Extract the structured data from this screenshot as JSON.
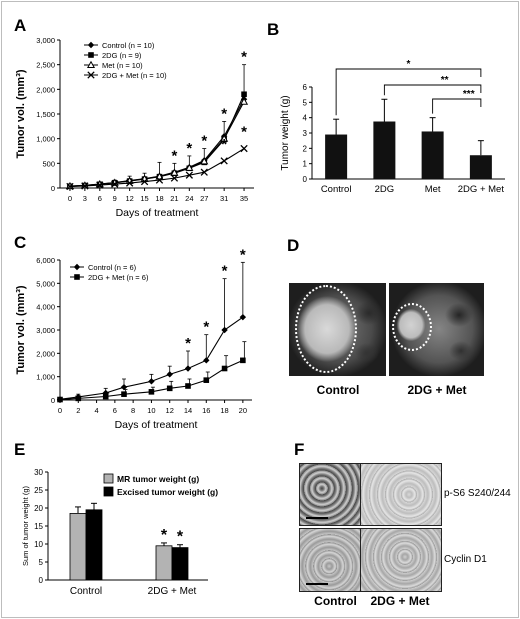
{
  "panels": {
    "A": {
      "label": "A"
    },
    "B": {
      "label": "B"
    },
    "C": {
      "label": "C"
    },
    "D": {
      "label": "D",
      "captions": [
        "Control",
        "2DG + Met"
      ]
    },
    "E": {
      "label": "E"
    },
    "F": {
      "label": "F",
      "row_labels": [
        "p-S6 S240/244",
        "Cyclin D1"
      ],
      "col_labels": [
        "Control",
        "2DG + Met"
      ]
    }
  },
  "chart_data": [
    {
      "id": "A",
      "type": "line",
      "xlabel": "Days of treatment",
      "ylabel": "Tumor vol. (mm³)",
      "x": [
        0,
        3,
        6,
        9,
        12,
        15,
        18,
        21,
        24,
        27,
        31,
        35
      ],
      "x_ticks": [
        "0",
        "3",
        "6",
        "9",
        "12",
        "15",
        "18",
        "21",
        "24",
        "27",
        "31",
        "35"
      ],
      "ylim": [
        0,
        3000
      ],
      "y_ticks": [
        "0",
        "500",
        "1,000",
        "1,500",
        "2,000",
        "2,500",
        "3,000"
      ],
      "legend_position": "top-left",
      "series": [
        {
          "name": "Control (n = 10)",
          "marker": "diamond",
          "values": [
            40,
            55,
            80,
            110,
            150,
            190,
            240,
            320,
            420,
            560,
            1050,
            1800
          ]
        },
        {
          "name": "2DG (n = 9)",
          "marker": "square",
          "values": [
            35,
            50,
            75,
            105,
            140,
            180,
            230,
            300,
            400,
            520,
            980,
            1900
          ]
        },
        {
          "name": "Met (n = 10)",
          "marker": "triangle",
          "values": [
            38,
            52,
            78,
            108,
            145,
            185,
            235,
            310,
            410,
            540,
            1000,
            1750
          ]
        },
        {
          "name": "2DG + Met (n = 10)",
          "marker": "cross",
          "values": [
            30,
            42,
            60,
            80,
            100,
            130,
            160,
            200,
            260,
            320,
            550,
            800
          ]
        }
      ],
      "error_top": [
        60,
        80,
        110,
        160,
        240,
        300,
        520,
        500,
        650,
        800,
        1350,
        2500
      ],
      "annotations": [
        {
          "x": 21,
          "text": "*"
        },
        {
          "x": 24,
          "text": "*"
        },
        {
          "x": 27,
          "text": "*"
        },
        {
          "x": 31,
          "text": "*"
        },
        {
          "x": 31,
          "text": "*"
        },
        {
          "x": 35,
          "text": "*"
        },
        {
          "x": 35,
          "text": "*"
        }
      ]
    },
    {
      "id": "B",
      "type": "bar",
      "ylabel": "Tumor weight (g)",
      "categories": [
        "Control",
        "2DG",
        "Met",
        "2DG + Met"
      ],
      "values": [
        2.9,
        3.75,
        3.1,
        1.55
      ],
      "errors": [
        1.0,
        1.45,
        0.9,
        0.95
      ],
      "ylim": [
        0,
        6
      ],
      "y_ticks": [
        "0",
        "1",
        "2",
        "3",
        "4",
        "5",
        "6"
      ],
      "bar_color": "#111111",
      "significance": [
        {
          "from": 0,
          "to": 3,
          "text": "*"
        },
        {
          "from": 1,
          "to": 3,
          "text": "**"
        },
        {
          "from": 2,
          "to": 3,
          "text": "***"
        }
      ]
    },
    {
      "id": "C",
      "type": "line",
      "xlabel": "Days of treatment",
      "ylabel": "Tumor vol. (mm³)",
      "x": [
        0,
        2,
        5,
        7,
        10,
        12,
        14,
        16,
        18,
        20
      ],
      "x_ticks": [
        "0",
        "2",
        "4",
        "6",
        "8",
        "10",
        "12",
        "14",
        "16",
        "18",
        "20"
      ],
      "ylim": [
        0,
        6000
      ],
      "y_ticks": [
        "0",
        "1,000",
        "2,000",
        "3,000",
        "4,000",
        "5,000",
        "6,000"
      ],
      "legend_position": "top-left",
      "series": [
        {
          "name": "Control (n = 6)",
          "marker": "diamond",
          "values": [
            30,
            130,
            300,
            550,
            800,
            1100,
            1350,
            1700,
            3000,
            3550
          ]
        },
        {
          "name": "2DG + Met (n = 6)",
          "marker": "square",
          "values": [
            20,
            70,
            150,
            250,
            350,
            500,
            600,
            850,
            1350,
            1700
          ]
        }
      ],
      "error_top": [
        80,
        250,
        500,
        900,
        1100,
        1450,
        2100,
        2800,
        5200,
        5900
      ],
      "error_top_b": [
        50,
        150,
        300,
        450,
        550,
        800,
        900,
        1200,
        1900,
        2500
      ],
      "annotations": [
        {
          "x": 14,
          "text": "*"
        },
        {
          "x": 16,
          "text": "*"
        },
        {
          "x": 18,
          "text": "*"
        },
        {
          "x": 20,
          "text": "*"
        }
      ]
    },
    {
      "id": "E",
      "type": "bar",
      "ylabel": "Sum of tumor weight (g)",
      "categories": [
        "Control",
        "2DG + Met"
      ],
      "series": [
        {
          "name": "MR tumor weight (g)",
          "color": "#b3b3b3",
          "values": [
            18.5,
            9.5
          ],
          "errors": [
            1.8,
            0.8
          ]
        },
        {
          "name": "Excised tumor weight (g)",
          "color": "#000000",
          "values": [
            19.5,
            9.0
          ],
          "errors": [
            1.8,
            0.8
          ]
        }
      ],
      "ylim": [
        0,
        30
      ],
      "y_ticks": [
        "0",
        "5",
        "10",
        "15",
        "20",
        "25",
        "30"
      ],
      "legend_position": "top-right",
      "annotations": [
        {
          "category": 1,
          "series": 0,
          "text": "*"
        },
        {
          "category": 1,
          "series": 1,
          "text": "*"
        }
      ]
    }
  ]
}
